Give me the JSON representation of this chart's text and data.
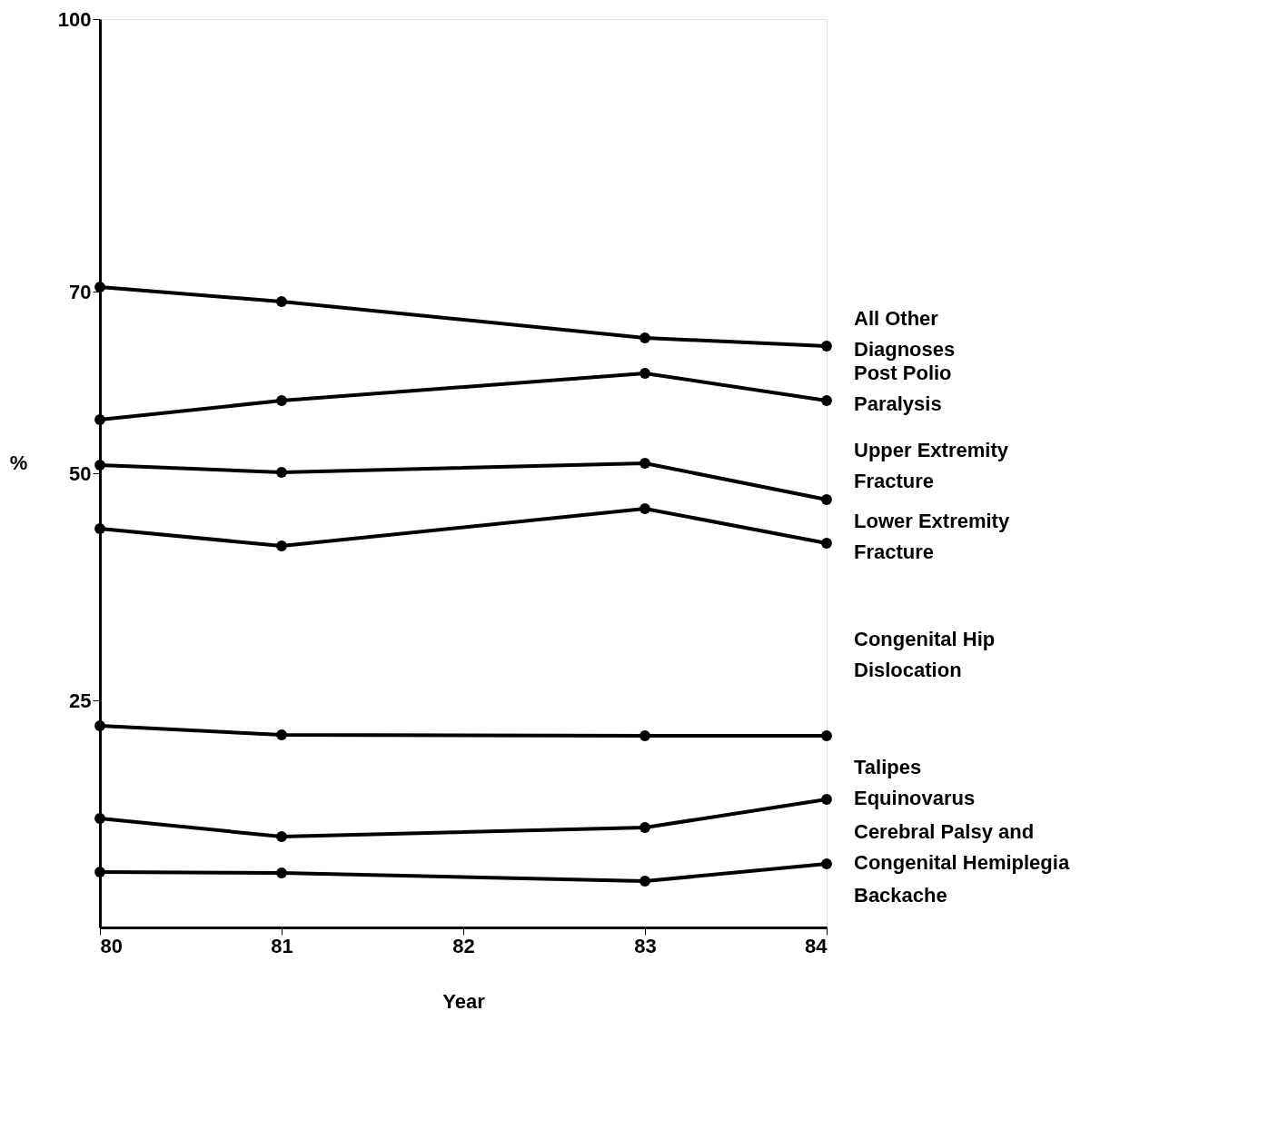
{
  "chart_data": {
    "type": "line",
    "xlabel": "Year",
    "ylabel": "%",
    "x": [
      80,
      81,
      83,
      84
    ],
    "series": [
      {
        "color": "#000000",
        "values": [
          70.5,
          68.9,
          64.9,
          64.0
        ]
      },
      {
        "color": "#000000",
        "values": [
          55.9,
          58.0,
          61.0,
          58.0
        ]
      },
      {
        "color": "#000000",
        "values": [
          50.9,
          50.1,
          51.1,
          47.1
        ]
      },
      {
        "color": "#000000",
        "values": [
          43.9,
          42.0,
          46.1,
          42.3
        ]
      },
      {
        "color": "#000000",
        "values": [
          22.2,
          21.2,
          21.1,
          21.1
        ]
      },
      {
        "color": "#000000",
        "values": [
          12.0,
          10.0,
          11.0,
          14.1
        ]
      },
      {
        "color": "#000000",
        "values": [
          6.1,
          6.0,
          5.1,
          7.0
        ]
      }
    ],
    "xlim": [
      80,
      84
    ],
    "xticks": [
      80,
      81,
      82,
      83,
      84
    ],
    "ylim": [
      0,
      100
    ],
    "yticks": [
      25,
      50,
      70,
      100
    ],
    "marker": "circle",
    "line_style": "solid",
    "grid": false,
    "annotations": [
      "All Other\nDiagnoses",
      "Post Polio\nParalysis",
      "Upper Extremity\nFracture",
      "Lower Extremity\nFracture",
      "Congenital Hip\nDislocation",
      "Talipes\nEquinovarus",
      "Cerebral Palsy and\nCongenital Hemiplegia",
      "Backache"
    ]
  }
}
